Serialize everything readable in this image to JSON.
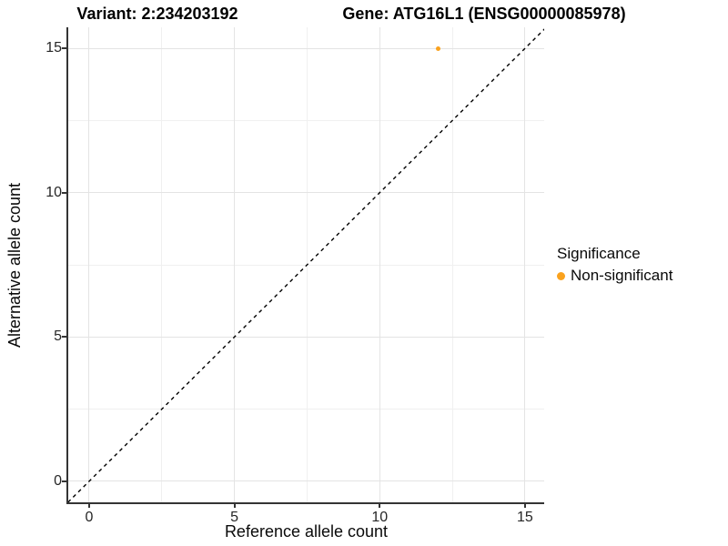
{
  "header": {
    "variant_title": "Variant: 2:234203192",
    "gene_title": "Gene: ATG16L1 (ENSG00000085978)"
  },
  "chart_data": {
    "type": "scatter",
    "xlabel": "Reference allele count",
    "ylabel": "Alternative allele count",
    "x_ticks": [
      0,
      5,
      10,
      15
    ],
    "y_ticks": [
      0,
      5,
      10,
      15
    ],
    "x_minor_ticks": [
      2.5,
      7.5,
      12.5
    ],
    "y_minor_ticks": [
      2.5,
      7.5,
      12.5
    ],
    "xlim": [
      -0.72,
      15.66
    ],
    "ylim": [
      -0.73,
      15.73
    ],
    "grid": "major+minor",
    "series": [
      {
        "name": "Non-significant",
        "color": "#FAA21E",
        "marker": "circle",
        "points": [
          {
            "x": 12,
            "y": 15
          }
        ]
      }
    ],
    "reference_line": {
      "kind": "identity y=x",
      "style": "dashed",
      "color": "#000000",
      "from": {
        "x": -0.73,
        "y": -0.73
      },
      "to": {
        "x": 15.73,
        "y": 15.73
      }
    }
  },
  "legend": {
    "title": "Significance",
    "items": [
      {
        "label": "Non-significant",
        "color": "#FAA21E",
        "marker": "circle"
      }
    ]
  },
  "style": {
    "background": "#FFFFFF",
    "grid_major_color": "#E4E4E4",
    "grid_minor_color": "#F0F0F0",
    "axis_line_color": "#343434",
    "tick_label_color": "#262626",
    "title_color": "#000000",
    "point_color": "#FAA21E"
  }
}
